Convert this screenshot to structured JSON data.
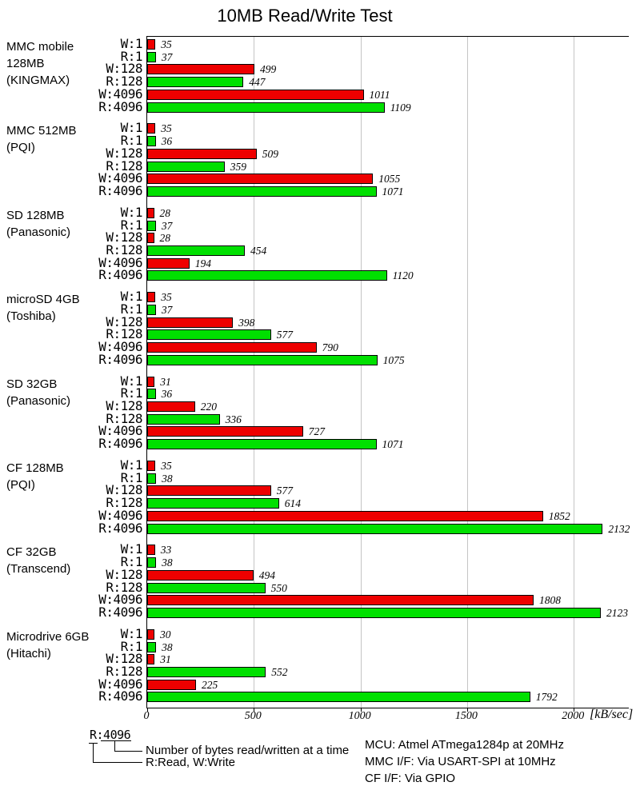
{
  "title": "10MB Read/Write Test",
  "chart_data": {
    "type": "bar",
    "orientation": "horizontal",
    "title": "10MB Read/Write Test",
    "xlabel": "[kB/sec]",
    "x_ticks": [
      0,
      500,
      1000,
      1500,
      2000
    ],
    "x_range": [
      0,
      2258
    ],
    "grid": true,
    "legend_position": "none",
    "bar_labels": [
      "W:1",
      "R:1",
      "W:128",
      "R:128",
      "W:4096",
      "R:4096"
    ],
    "colors": {
      "write": "#ee0000",
      "read": "#00e000",
      "grid": "#c4c4c4"
    },
    "groups": [
      {
        "device": "MMC mobile\n128MB\n(KINGMAX)",
        "values": [
          35,
          37,
          499,
          447,
          1011,
          1109
        ]
      },
      {
        "device": "MMC 512MB\n(PQI)",
        "values": [
          35,
          36,
          509,
          359,
          1055,
          1071
        ]
      },
      {
        "device": "SD 128MB\n(Panasonic)",
        "values": [
          28,
          37,
          28,
          454,
          194,
          1120
        ]
      },
      {
        "device": "microSD 4GB\n(Toshiba)",
        "values": [
          35,
          37,
          398,
          577,
          790,
          1075
        ]
      },
      {
        "device": "SD 32GB\n(Panasonic)",
        "values": [
          31,
          36,
          220,
          336,
          727,
          1071
        ]
      },
      {
        "device": "CF 128MB\n(PQI)",
        "values": [
          35,
          38,
          577,
          614,
          1852,
          2132
        ]
      },
      {
        "device": "CF 32GB\n(Transcend)",
        "values": [
          33,
          38,
          494,
          550,
          1808,
          2123
        ]
      },
      {
        "device": "Microdrive 6GB\n(Hitachi)",
        "values": [
          30,
          38,
          31,
          552,
          225,
          1792
        ]
      }
    ]
  },
  "legend": {
    "example_label": "R:4096",
    "note_bytes": "Number of bytes read/written at a time",
    "note_rw": "R:Read, W:Write"
  },
  "footer_notes": [
    "MCU: Atmel ATmega1284p at 20MHz",
    "MMC I/F: Via USART-SPI at 10MHz",
    "CF I/F: Via GPIO"
  ]
}
